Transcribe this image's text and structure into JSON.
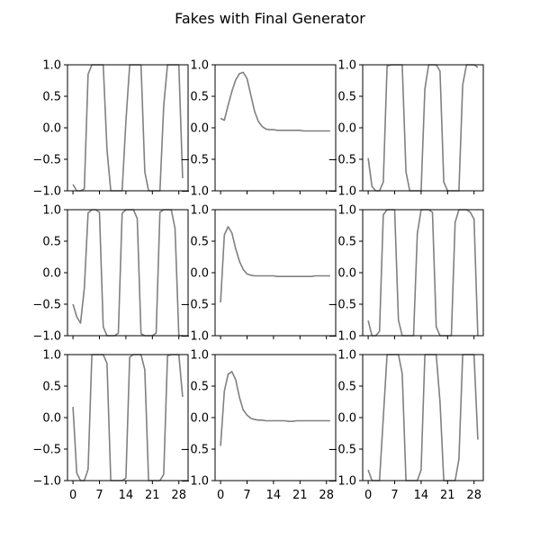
{
  "chart_data": {
    "type": "line",
    "title": "Fakes with Final Generator",
    "xticks": [
      0,
      7,
      14,
      21,
      28
    ],
    "yticks": [
      -1.0,
      -0.5,
      0.0,
      0.5,
      1.0
    ],
    "ytick_labels": [
      "−1.0",
      "−0.5",
      "0.0",
      "0.5",
      "1.0"
    ],
    "xlim": [
      -1.45,
      30.45
    ],
    "ylim": [
      -1.0,
      1.0
    ],
    "grid": false,
    "line_color": "#808080",
    "layout": {
      "rows": 3,
      "cols": 3
    },
    "panels": [
      {
        "x": [
          0,
          1,
          2,
          3,
          4,
          5,
          6,
          7,
          8,
          9,
          10,
          11,
          12,
          13,
          14,
          15,
          16,
          17,
          18,
          19,
          20,
          21,
          22,
          23,
          24,
          25,
          26,
          27,
          28,
          29
        ],
        "y": [
          -0.9,
          -1.0,
          -1.0,
          -0.97,
          0.85,
          1.0,
          1.0,
          1.0,
          1.0,
          -0.35,
          -1.0,
          -1.0,
          -1.0,
          -1.0,
          0.1,
          1.0,
          1.0,
          1.0,
          1.0,
          -0.7,
          -1.0,
          -1.0,
          -1.0,
          -1.0,
          0.35,
          1.0,
          1.0,
          1.0,
          1.0,
          -0.8
        ]
      },
      {
        "x": [
          0,
          1,
          2,
          3,
          4,
          5,
          6,
          7,
          8,
          9,
          10,
          11,
          12,
          13,
          14,
          15,
          16,
          17,
          18,
          19,
          20,
          21,
          22,
          23,
          24,
          25,
          26,
          27,
          28,
          29
        ],
        "y": [
          0.15,
          0.12,
          0.36,
          0.58,
          0.76,
          0.86,
          0.88,
          0.78,
          0.52,
          0.26,
          0.1,
          0.02,
          -0.02,
          -0.03,
          -0.03,
          -0.04,
          -0.04,
          -0.04,
          -0.04,
          -0.04,
          -0.04,
          -0.04,
          -0.05,
          -0.05,
          -0.05,
          -0.05,
          -0.05,
          -0.05,
          -0.05,
          -0.05
        ]
      },
      {
        "x": [
          0,
          1,
          2,
          3,
          4,
          5,
          6,
          7,
          8,
          9,
          10,
          11,
          12,
          13,
          14,
          15,
          16,
          17,
          18,
          19,
          20,
          21,
          22,
          23,
          24,
          25,
          26,
          27,
          28,
          29
        ],
        "y": [
          -0.48,
          -0.93,
          -1.0,
          -1.0,
          -0.86,
          0.98,
          1.0,
          1.0,
          1.0,
          1.0,
          -0.7,
          -1.0,
          -1.0,
          -1.0,
          -1.0,
          0.62,
          1.0,
          1.0,
          1.0,
          0.9,
          -0.86,
          -1.0,
          -1.0,
          -1.0,
          -1.0,
          0.68,
          1.0,
          1.0,
          1.0,
          0.96
        ]
      },
      {
        "x": [
          0,
          1,
          2,
          3,
          4,
          5,
          6,
          7,
          8,
          9,
          10,
          11,
          12,
          13,
          14,
          15,
          16,
          17,
          18,
          19,
          20,
          21,
          22,
          23,
          24,
          25,
          26,
          27,
          28,
          29
        ],
        "y": [
          -0.5,
          -0.7,
          -0.8,
          -0.25,
          0.95,
          1.0,
          1.0,
          0.96,
          -0.86,
          -1.0,
          -1.0,
          -1.0,
          -0.96,
          0.94,
          1.0,
          1.0,
          1.0,
          0.86,
          -0.97,
          -1.0,
          -1.0,
          -1.0,
          -0.96,
          0.96,
          1.0,
          1.0,
          1.0,
          0.7,
          -1.0,
          -1.0
        ]
      },
      {
        "x": [
          0,
          1,
          2,
          3,
          4,
          5,
          6,
          7,
          8,
          9,
          10,
          11,
          12,
          13,
          14,
          15,
          16,
          17,
          18,
          19,
          20,
          21,
          22,
          23,
          24,
          25,
          26,
          27,
          28,
          29
        ],
        "y": [
          -0.47,
          0.6,
          0.73,
          0.63,
          0.38,
          0.18,
          0.05,
          -0.02,
          -0.04,
          -0.05,
          -0.05,
          -0.05,
          -0.05,
          -0.05,
          -0.05,
          -0.06,
          -0.06,
          -0.06,
          -0.06,
          -0.06,
          -0.06,
          -0.06,
          -0.06,
          -0.06,
          -0.06,
          -0.05,
          -0.05,
          -0.05,
          -0.05,
          -0.05
        ]
      },
      {
        "x": [
          0,
          1,
          2,
          3,
          4,
          5,
          6,
          7,
          8,
          9,
          10,
          11,
          12,
          13,
          14,
          15,
          16,
          17,
          18,
          19,
          20,
          21,
          22,
          23,
          24,
          25,
          26,
          27,
          28,
          29
        ],
        "y": [
          -0.76,
          -1.0,
          -1.0,
          -0.93,
          0.92,
          1.0,
          1.0,
          1.0,
          -0.75,
          -1.0,
          -1.0,
          -1.0,
          -1.0,
          0.62,
          1.0,
          1.0,
          1.0,
          0.96,
          -0.86,
          -1.0,
          -1.0,
          -1.0,
          -1.0,
          0.8,
          1.0,
          1.0,
          1.0,
          0.96,
          0.85,
          -1.0
        ]
      },
      {
        "x": [
          0,
          1,
          2,
          3,
          4,
          5,
          6,
          7,
          8,
          9,
          10,
          11,
          12,
          13,
          14,
          15,
          16,
          17,
          18,
          19,
          20,
          21,
          22,
          23,
          24,
          25,
          26,
          27,
          28,
          29
        ],
        "y": [
          0.17,
          -0.88,
          -1.0,
          -1.0,
          -0.82,
          1.0,
          1.0,
          1.0,
          1.0,
          0.86,
          -1.0,
          -1.0,
          -1.0,
          -1.0,
          -0.96,
          0.96,
          1.0,
          1.0,
          1.0,
          0.76,
          -1.0,
          -1.0,
          -1.0,
          -1.0,
          -0.9,
          0.98,
          1.0,
          1.0,
          1.0,
          0.33
        ]
      },
      {
        "x": [
          0,
          1,
          2,
          3,
          4,
          5,
          6,
          7,
          8,
          9,
          10,
          11,
          12,
          13,
          14,
          15,
          16,
          17,
          18,
          19,
          20,
          21,
          22,
          23,
          24,
          25,
          26,
          27,
          28,
          29
        ],
        "y": [
          -0.45,
          0.42,
          0.69,
          0.73,
          0.6,
          0.32,
          0.12,
          0.04,
          -0.01,
          -0.03,
          -0.04,
          -0.04,
          -0.05,
          -0.05,
          -0.05,
          -0.05,
          -0.05,
          -0.05,
          -0.06,
          -0.06,
          -0.05,
          -0.05,
          -0.05,
          -0.05,
          -0.05,
          -0.05,
          -0.05,
          -0.05,
          -0.05,
          -0.05
        ]
      },
      {
        "x": [
          0,
          1,
          2,
          3,
          4,
          5,
          6,
          7,
          8,
          9,
          10,
          11,
          12,
          13,
          14,
          15,
          16,
          17,
          18,
          19,
          20,
          21,
          22,
          23,
          24,
          25,
          26,
          27,
          28,
          29
        ],
        "y": [
          -0.83,
          -1.0,
          -1.0,
          -1.0,
          0.0,
          1.0,
          1.0,
          1.0,
          1.0,
          0.7,
          -1.0,
          -1.0,
          -1.0,
          -1.0,
          -0.83,
          1.0,
          1.0,
          1.0,
          1.0,
          0.25,
          -1.0,
          -1.0,
          -1.0,
          -1.0,
          -0.66,
          1.0,
          1.0,
          1.0,
          1.0,
          -0.35
        ]
      }
    ]
  }
}
